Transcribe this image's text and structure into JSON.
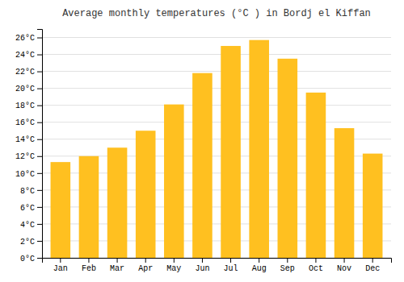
{
  "chart_data": {
    "type": "bar",
    "title": "Average monthly temperatures (°C ) in Bordj el Kiffan",
    "categories": [
      "Jan",
      "Feb",
      "Mar",
      "Apr",
      "May",
      "Jun",
      "Jul",
      "Aug",
      "Sep",
      "Oct",
      "Nov",
      "Dec"
    ],
    "values": [
      11.3,
      12.0,
      13.0,
      15.0,
      18.1,
      21.8,
      25.0,
      25.7,
      23.5,
      19.5,
      15.3,
      12.3
    ],
    "color": "#FFC020",
    "ylim": [
      0,
      27
    ],
    "yticks": [
      {
        "value": 0,
        "label": "0°C"
      },
      {
        "value": 2,
        "label": "2°C"
      },
      {
        "value": 4,
        "label": "4°C"
      },
      {
        "value": 6,
        "label": "6°C"
      },
      {
        "value": 8,
        "label": "8°C"
      },
      {
        "value": 10,
        "label": "10°C"
      },
      {
        "value": 12,
        "label": "12°C"
      },
      {
        "value": 14,
        "label": "14°C"
      },
      {
        "value": 16,
        "label": "16°C"
      },
      {
        "value": 18,
        "label": "18°C"
      },
      {
        "value": 20,
        "label": "20°C"
      },
      {
        "value": 22,
        "label": "22°C"
      },
      {
        "value": 24,
        "label": "24°C"
      },
      {
        "value": 26,
        "label": "26°C"
      }
    ],
    "grid": true
  }
}
